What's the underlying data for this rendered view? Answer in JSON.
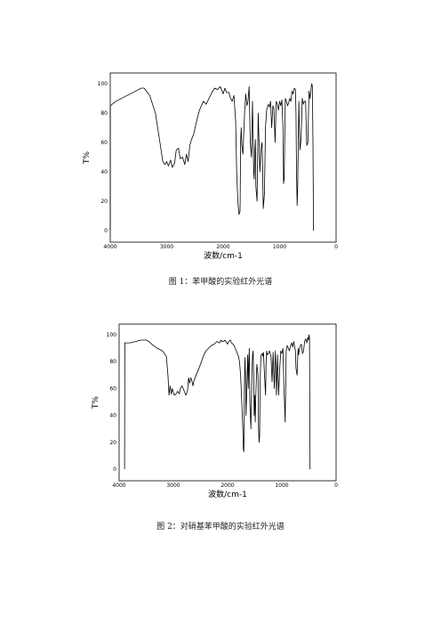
{
  "chart_data": [
    {
      "type": "line",
      "caption": "图 1：苯甲酸的实验红外光谱",
      "xlabel": "波数/cm-1",
      "ylabel": "T%",
      "xlim": [
        4000,
        0
      ],
      "ylim": [
        0,
        100
      ],
      "x_ticks": [
        4000,
        3000,
        2000,
        1000,
        0
      ],
      "y_ticks": [
        0,
        20,
        40,
        60,
        80,
        100
      ],
      "grid": false,
      "series": [
        {
          "x": [
            3999,
            3998,
            3900,
            3700,
            3550,
            3450,
            3400,
            3300,
            3200,
            3120,
            3070,
            3030,
            3000,
            2970,
            2930,
            2900,
            2860,
            2830,
            2790,
            2760,
            2720,
            2680,
            2650,
            2620,
            2590,
            2560,
            2520,
            2480,
            2420,
            2350,
            2300,
            2250,
            2200,
            2150,
            2100,
            2050,
            2000,
            1970,
            1940,
            1900,
            1870,
            1840,
            1810,
            1780,
            1760,
            1740,
            1720,
            1700,
            1690,
            1680,
            1670,
            1650,
            1620,
            1600,
            1580,
            1560,
            1540,
            1520,
            1500,
            1480,
            1460,
            1450,
            1440,
            1430,
            1420,
            1400,
            1380,
            1350,
            1330,
            1310,
            1290,
            1270,
            1250,
            1230,
            1200,
            1180,
            1160,
            1140,
            1120,
            1100,
            1080,
            1060,
            1040,
            1020,
            1000,
            980,
            960,
            940,
            930,
            920,
            900,
            880,
            860,
            840,
            820,
            800,
            780,
            760,
            740,
            720,
            710,
            700,
            690,
            680,
            670,
            660,
            650,
            640,
            620,
            600,
            580,
            560,
            540,
            520,
            500,
            480,
            460,
            440,
            430,
            420,
            410,
            400
          ],
          "y": [
            0,
            85,
            88,
            92,
            95,
            97,
            97,
            92,
            80,
            60,
            47,
            45,
            47,
            44,
            48,
            43,
            46,
            55,
            56,
            49,
            50,
            45,
            52,
            47,
            58,
            62,
            66,
            73,
            82,
            88,
            86,
            90,
            94,
            97,
            96,
            98,
            93,
            97,
            94,
            94,
            90,
            88,
            92,
            75,
            40,
            20,
            11,
            13,
            62,
            70,
            58,
            52,
            80,
            93,
            85,
            88,
            98,
            60,
            50,
            88,
            40,
            35,
            55,
            62,
            30,
            20,
            80,
            40,
            55,
            60,
            15,
            25,
            70,
            82,
            86,
            84,
            88,
            70,
            85,
            83,
            60,
            88,
            86,
            82,
            88,
            85,
            89,
            70,
            32,
            35,
            90,
            88,
            85,
            87,
            90,
            88,
            95,
            93,
            97,
            96,
            80,
            40,
            17,
            30,
            60,
            88,
            70,
            55,
            62,
            90,
            86,
            88,
            88,
            58,
            60,
            95,
            90,
            98,
            100,
            98,
            60,
            0
          ]
        }
      ]
    },
    {
      "type": "line",
      "caption": "图 2：对硝基苯甲酸的实验红外光谱",
      "xlabel": "波数/cm-1",
      "ylabel": "T%",
      "xlim": [
        4000,
        0
      ],
      "ylim": [
        0,
        100
      ],
      "x_ticks": [
        4000,
        3000,
        2000,
        1000,
        0
      ],
      "y_ticks": [
        0,
        20,
        40,
        60,
        80,
        100
      ],
      "grid": false,
      "series": [
        {
          "x": [
            3900,
            3895,
            3800,
            3700,
            3600,
            3500,
            3450,
            3400,
            3300,
            3200,
            3130,
            3100,
            3080,
            3060,
            3040,
            3020,
            3000,
            2980,
            2950,
            2920,
            2890,
            2870,
            2840,
            2820,
            2800,
            2770,
            2740,
            2720,
            2700,
            2680,
            2660,
            2640,
            2620,
            2580,
            2540,
            2500,
            2450,
            2400,
            2350,
            2300,
            2250,
            2200,
            2150,
            2120,
            2100,
            2080,
            2050,
            2000,
            1980,
            1950,
            1930,
            1900,
            1880,
            1860,
            1840,
            1820,
            1800,
            1780,
            1760,
            1740,
            1720,
            1710,
            1700,
            1690,
            1680,
            1670,
            1660,
            1650,
            1630,
            1620,
            1610,
            1600,
            1590,
            1570,
            1550,
            1540,
            1530,
            1520,
            1510,
            1500,
            1490,
            1480,
            1460,
            1440,
            1430,
            1420,
            1410,
            1400,
            1390,
            1380,
            1360,
            1350,
            1340,
            1320,
            1300,
            1290,
            1280,
            1270,
            1250,
            1230,
            1200,
            1180,
            1160,
            1140,
            1120,
            1110,
            1100,
            1080,
            1060,
            1040,
            1020,
            1000,
            980,
            960,
            950,
            940,
            930,
            920,
            900,
            880,
            860,
            840,
            820,
            800,
            780,
            760,
            750,
            740,
            720,
            700,
            690,
            680,
            660,
            640,
            620,
            600,
            580,
            560,
            540,
            520,
            510,
            500,
            490,
            480
          ],
          "y": [
            0,
            94,
            94,
            95,
            96,
            96,
            95,
            93,
            90,
            88,
            84,
            70,
            55,
            62,
            56,
            60,
            57,
            55,
            56,
            58,
            56,
            60,
            62,
            60,
            58,
            55,
            58,
            68,
            64,
            68,
            66,
            62,
            66,
            70,
            74,
            78,
            84,
            88,
            90,
            92,
            93,
            95,
            94,
            96,
            95,
            95,
            96,
            93,
            95,
            96,
            94,
            93,
            92,
            90,
            88,
            86,
            84,
            80,
            70,
            50,
            30,
            15,
            13,
            60,
            83,
            70,
            40,
            55,
            85,
            60,
            80,
            90,
            50,
            30,
            75,
            85,
            88,
            70,
            40,
            55,
            35,
            55,
            78,
            70,
            30,
            20,
            25,
            65,
            80,
            85,
            86,
            84,
            87,
            70,
            55,
            80,
            88,
            85,
            86,
            88,
            84,
            65,
            87,
            60,
            88,
            75,
            55,
            85,
            55,
            75,
            88,
            86,
            90,
            60,
            50,
            35,
            60,
            88,
            92,
            90,
            88,
            92,
            94,
            91,
            95,
            90,
            88,
            75,
            70,
            90,
            85,
            88,
            92,
            93,
            86,
            88,
            95,
            97,
            94,
            98,
            96,
            100,
            98,
            0
          ]
        }
      ]
    }
  ]
}
